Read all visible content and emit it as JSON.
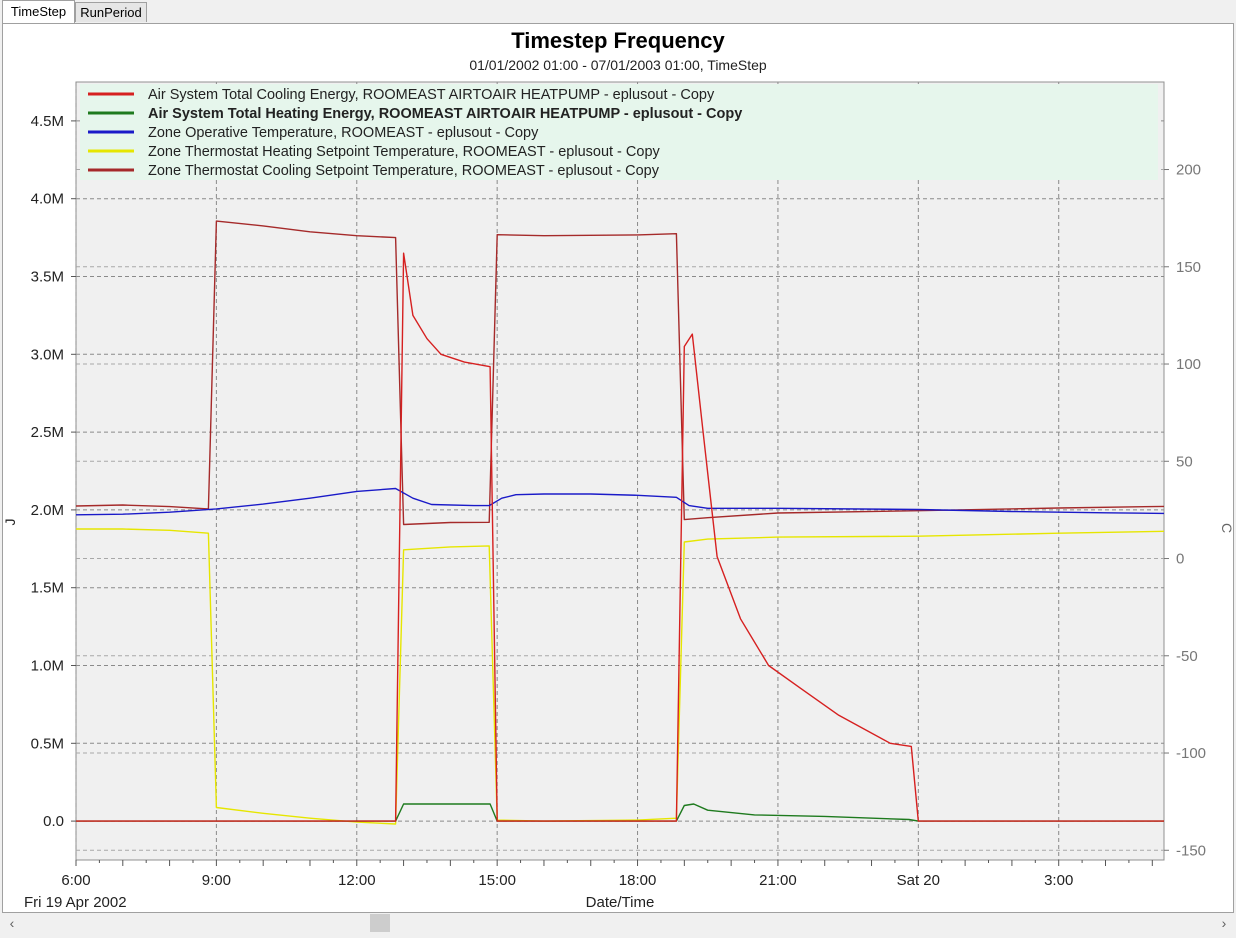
{
  "tabs": [
    {
      "label": "TimeStep",
      "active": true
    },
    {
      "label": "RunPeriod",
      "active": false
    }
  ],
  "chart_data": {
    "type": "line",
    "title": "Timestep Frequency",
    "subtitle": "01/01/2002 01:00 - 07/01/2003 01:00, TimeStep",
    "xlabel": "Date/Time",
    "ylabel_left": "J",
    "ylabel_right": "C",
    "x_date_label": "Fri 19  Apr 2002",
    "x_hours_range": [
      6,
      29.25
    ],
    "x_ticks": [
      {
        "h": 6,
        "label": "6:00"
      },
      {
        "h": 9,
        "label": "9:00"
      },
      {
        "h": 12,
        "label": "12:00"
      },
      {
        "h": 15,
        "label": "15:00"
      },
      {
        "h": 18,
        "label": "18:00"
      },
      {
        "h": 21,
        "label": "21:00"
      },
      {
        "h": 24,
        "label": "Sat 20"
      },
      {
        "h": 27,
        "label": "3:00"
      }
    ],
    "y_left_range": [
      -0.25,
      4.75
    ],
    "y_left_ticks": [
      {
        "v": 0,
        "label": "0.0"
      },
      {
        "v": 0.5,
        "label": "0.5M"
      },
      {
        "v": 1.0,
        "label": "1.0M"
      },
      {
        "v": 1.5,
        "label": "1.5M"
      },
      {
        "v": 2.0,
        "label": "2.0M"
      },
      {
        "v": 2.5,
        "label": "2.5M"
      },
      {
        "v": 3.0,
        "label": "3.0M"
      },
      {
        "v": 3.5,
        "label": "3.5M"
      },
      {
        "v": 4.0,
        "label": "4.0M"
      },
      {
        "v": 4.5,
        "label": "4.5M"
      }
    ],
    "y_right_range": [
      -155,
      245
    ],
    "y_right_ticks": [
      {
        "v": -150,
        "label": "-150"
      },
      {
        "v": -100,
        "label": "-100"
      },
      {
        "v": -50,
        "label": "-50"
      },
      {
        "v": 0,
        "label": "0"
      },
      {
        "v": 50,
        "label": "50"
      },
      {
        "v": 100,
        "label": "100"
      },
      {
        "v": 150,
        "label": "150"
      },
      {
        "v": 200,
        "label": "200"
      }
    ],
    "grid": true,
    "legend_position": "top",
    "series": [
      {
        "name": "Air System Total Cooling Energy, ROOMEAST AIRTOAIR HEATPUMP - eplusout - Copy",
        "color": "#d62020",
        "axis": "left",
        "bold": false,
        "points": [
          [
            6,
            0
          ],
          [
            12.83,
            0
          ],
          [
            13.0,
            3.65
          ],
          [
            13.2,
            3.25
          ],
          [
            13.5,
            3.1
          ],
          [
            13.8,
            3.0
          ],
          [
            14.3,
            2.95
          ],
          [
            14.85,
            2.92
          ],
          [
            15.0,
            0
          ],
          [
            18.83,
            0
          ],
          [
            19.0,
            3.05
          ],
          [
            19.17,
            3.13
          ],
          [
            19.4,
            2.5
          ],
          [
            19.7,
            1.7
          ],
          [
            20.2,
            1.3
          ],
          [
            20.8,
            1.0
          ],
          [
            21.5,
            0.85
          ],
          [
            22.3,
            0.68
          ],
          [
            23.4,
            0.5
          ],
          [
            23.85,
            0.48
          ],
          [
            24.0,
            0
          ],
          [
            29.25,
            0
          ]
        ]
      },
      {
        "name": "Air System Total Heating Energy, ROOMEAST AIRTOAIR HEATPUMP - eplusout - Copy",
        "color": "#1e7a1e",
        "axis": "left",
        "bold": true,
        "points": [
          [
            6,
            0
          ],
          [
            12.83,
            0
          ],
          [
            13.0,
            0.11
          ],
          [
            14.85,
            0.11
          ],
          [
            15.0,
            0
          ],
          [
            18.83,
            0
          ],
          [
            19.0,
            0.1
          ],
          [
            19.2,
            0.11
          ],
          [
            19.5,
            0.07
          ],
          [
            20.5,
            0.04
          ],
          [
            22,
            0.03
          ],
          [
            23.8,
            0.01
          ],
          [
            24.0,
            0
          ],
          [
            29.25,
            0
          ]
        ]
      },
      {
        "name": "Zone Operative Temperature, ROOMEAST - eplusout - Copy",
        "color": "#1a1ac8",
        "axis": "right",
        "bold": false,
        "points": [
          [
            6,
            22.5
          ],
          [
            7,
            22.8
          ],
          [
            8,
            23.8
          ],
          [
            9,
            25.5
          ],
          [
            10,
            28
          ],
          [
            11,
            31
          ],
          [
            12,
            34.5
          ],
          [
            12.83,
            36
          ],
          [
            13.2,
            31
          ],
          [
            13.6,
            27.8
          ],
          [
            14.5,
            27.2
          ],
          [
            14.83,
            27.2
          ],
          [
            15.1,
            31
          ],
          [
            15.4,
            32.8
          ],
          [
            16,
            33.2
          ],
          [
            17,
            33.2
          ],
          [
            18,
            32.5
          ],
          [
            18.83,
            31.5
          ],
          [
            19.1,
            27.2
          ],
          [
            19.5,
            25.8
          ],
          [
            21,
            25.8
          ],
          [
            24,
            25.2
          ],
          [
            26,
            24.2
          ],
          [
            28,
            23.5
          ],
          [
            29.25,
            23.2
          ]
        ]
      },
      {
        "name": "Zone Thermostat Heating Setpoint Temperature, ROOMEAST - eplusout - Copy",
        "color": "#e6e600",
        "axis": "right",
        "bold": false,
        "points": [
          [
            6,
            15.2
          ],
          [
            7,
            15.2
          ],
          [
            8,
            14.5
          ],
          [
            8.83,
            13
          ],
          [
            9.0,
            -128
          ],
          [
            10,
            -131
          ],
          [
            11,
            -133.5
          ],
          [
            12,
            -135.5
          ],
          [
            12.83,
            -136.5
          ],
          [
            13.0,
            4.5
          ],
          [
            14,
            6
          ],
          [
            14.83,
            6.5
          ],
          [
            15.0,
            -134.5
          ],
          [
            16,
            -135
          ],
          [
            18,
            -134.5
          ],
          [
            18.83,
            -133.5
          ],
          [
            19.0,
            8.5
          ],
          [
            19.5,
            10
          ],
          [
            21,
            11
          ],
          [
            24,
            11.5
          ],
          [
            27,
            13
          ],
          [
            29.25,
            14
          ]
        ]
      },
      {
        "name": "Zone Thermostat Cooling Setpoint Temperature, ROOMEAST - eplusout - Copy",
        "color": "#a52a2a",
        "axis": "right",
        "bold": false,
        "points": [
          [
            6,
            27
          ],
          [
            7,
            27.5
          ],
          [
            8,
            26.7
          ],
          [
            8.83,
            25.5
          ],
          [
            9.0,
            173.5
          ],
          [
            10,
            171
          ],
          [
            11,
            168
          ],
          [
            12,
            166
          ],
          [
            12.83,
            165
          ],
          [
            13.0,
            17.5
          ],
          [
            14,
            18.5
          ],
          [
            14.83,
            18.6
          ],
          [
            15.0,
            166.5
          ],
          [
            16,
            166
          ],
          [
            18,
            166.4
          ],
          [
            18.83,
            167
          ],
          [
            19.0,
            20
          ],
          [
            19.5,
            21
          ],
          [
            21,
            23.4
          ],
          [
            24,
            24.6
          ],
          [
            27,
            26
          ],
          [
            29.25,
            26.8
          ]
        ]
      }
    ]
  }
}
